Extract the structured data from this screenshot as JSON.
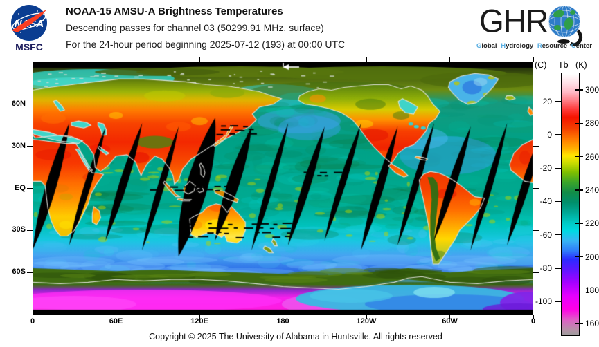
{
  "header": {
    "nasa": {
      "agency": "NASA",
      "msfc": "MSFC"
    },
    "title": "NOAA-15 AMSU-A Brightness Temperatures",
    "subtitle_channel": "Descending passes for channel 03 (50299.91 MHz, surface)",
    "subtitle_period": "For the 24-hour period beginning 2025-07-12 (193) at 00:00 UTC",
    "ghrc": {
      "letters": "GHR",
      "tagline_words": [
        {
          "initial": "G",
          "rest": "lobal"
        },
        {
          "initial": "H",
          "rest": "ydrology"
        },
        {
          "initial": "R",
          "rest": "esource"
        },
        {
          "initial": "C",
          "rest": "enter"
        }
      ]
    }
  },
  "map": {
    "lat_ticks": [
      {
        "label": "60N",
        "deg": 60
      },
      {
        "label": "30N",
        "deg": 30
      },
      {
        "label": "EQ",
        "deg": 0
      },
      {
        "label": "30S",
        "deg": -30
      },
      {
        "label": "60S",
        "deg": -60
      }
    ],
    "lon_ticks": [
      {
        "label": "0",
        "deg": 0
      },
      {
        "label": "60E",
        "deg": 60
      },
      {
        "label": "120E",
        "deg": 120
      },
      {
        "label": "180",
        "deg": 180
      },
      {
        "label": "120W",
        "deg": 240
      },
      {
        "label": "60W",
        "deg": 300
      },
      {
        "label": "0",
        "deg": 360
      }
    ],
    "swaths": {
      "count": 14,
      "halfwidths": [
        8,
        5,
        6,
        5,
        16,
        9,
        5,
        6,
        5,
        6,
        5,
        6,
        5,
        6
      ],
      "color": "#000000",
      "description": "black gaps between descending passes"
    },
    "arrow": {
      "direction": "west",
      "color": "#ffffff"
    }
  },
  "colorbar": {
    "header": {
      "c": "(C)",
      "tb": "Tb",
      "k": "(K)"
    },
    "kelvin_ticks": [
      300,
      280,
      260,
      240,
      220,
      200,
      180,
      160
    ],
    "celsius_ticks": [
      20,
      0,
      -20,
      -40,
      -60,
      -80,
      -100
    ],
    "kelvin_range": [
      153.4,
      310.4
    ],
    "stops": [
      [
        310,
        "#ffffff"
      ],
      [
        304,
        "#ffdde4"
      ],
      [
        299,
        "#ffb8c4"
      ],
      [
        294,
        "#ff7d86"
      ],
      [
        289,
        "#ff3c3c"
      ],
      [
        284,
        "#f51400"
      ],
      [
        277,
        "#f54200"
      ],
      [
        271,
        "#ff7a00"
      ],
      [
        265,
        "#ffb200"
      ],
      [
        261,
        "#ffe600"
      ],
      [
        257,
        "#cfdd00"
      ],
      [
        251,
        "#7fbf00"
      ],
      [
        245,
        "#3aa52a"
      ],
      [
        239,
        "#128c48"
      ],
      [
        233,
        "#008f6c"
      ],
      [
        227,
        "#00a896"
      ],
      [
        221,
        "#00c9c4"
      ],
      [
        216,
        "#00d9e2"
      ],
      [
        210,
        "#38b4f4"
      ],
      [
        204,
        "#2f7cfa"
      ],
      [
        199,
        "#2b2bff"
      ],
      [
        192,
        "#6414ff"
      ],
      [
        185,
        "#a500ff"
      ],
      [
        177,
        "#e400ff"
      ],
      [
        169,
        "#ff00e6"
      ],
      [
        163,
        "#e05cc8"
      ],
      [
        157,
        "#b88fa9"
      ],
      [
        153.4,
        "#9c9c9c"
      ]
    ]
  },
  "footer": {
    "copyright": "Copyright © 2025 The University of Alabama in Huntsville.  All rights reserved"
  }
}
